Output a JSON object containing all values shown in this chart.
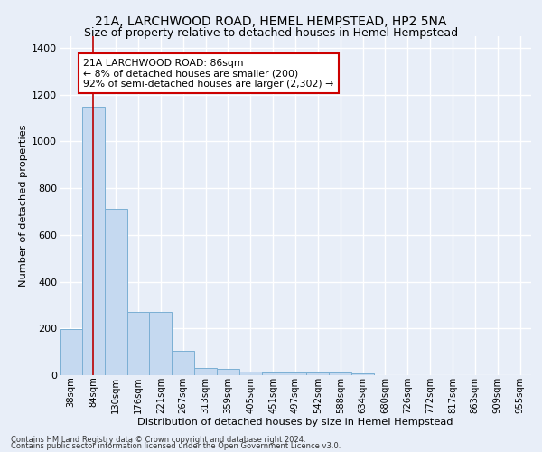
{
  "title": "21A, LARCHWOOD ROAD, HEMEL HEMPSTEAD, HP2 5NA",
  "subtitle": "Size of property relative to detached houses in Hemel Hempstead",
  "xlabel": "Distribution of detached houses by size in Hemel Hempstead",
  "ylabel": "Number of detached properties",
  "footer1": "Contains HM Land Registry data © Crown copyright and database right 2024.",
  "footer2": "Contains public sector information licensed under the Open Government Licence v3.0.",
  "categories": [
    "38sqm",
    "84sqm",
    "130sqm",
    "176sqm",
    "221sqm",
    "267sqm",
    "313sqm",
    "359sqm",
    "405sqm",
    "451sqm",
    "497sqm",
    "542sqm",
    "588sqm",
    "634sqm",
    "680sqm",
    "726sqm",
    "772sqm",
    "817sqm",
    "863sqm",
    "909sqm",
    "955sqm"
  ],
  "values": [
    197,
    1150,
    710,
    270,
    270,
    105,
    32,
    28,
    15,
    13,
    10,
    13,
    13,
    7,
    0,
    0,
    0,
    0,
    0,
    0,
    0
  ],
  "bar_color": "#c5d9f0",
  "bar_edge_color": "#7bafd4",
  "vline_x": 1,
  "vline_color": "#bb0000",
  "annotation_line1": "21A LARCHWOOD ROAD: 86sqm",
  "annotation_line2": "← 8% of detached houses are smaller (200)",
  "annotation_line3": "92% of semi-detached houses are larger (2,302) →",
  "annotation_box_color": "#ffffff",
  "annotation_box_edge": "#cc0000",
  "ylim": [
    0,
    1450
  ],
  "yticks": [
    0,
    200,
    400,
    600,
    800,
    1000,
    1200,
    1400
  ],
  "bg_color": "#e8eef8",
  "axes_bg_color": "#e8eef8",
  "grid_color": "#ffffff",
  "title_fontsize": 10,
  "subtitle_fontsize": 9
}
